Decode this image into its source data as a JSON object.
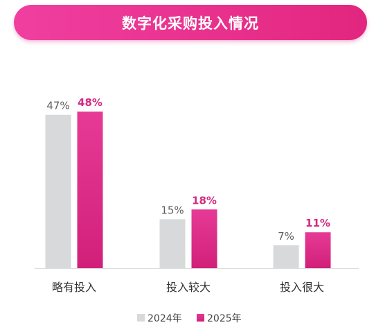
{
  "title": "数字化采购投入情况",
  "colors": {
    "series_2024": "#d8d9db",
    "series_2025_top": "#e63a96",
    "series_2025_bottom": "#d1207a",
    "value_2024_text": "#5e5e5e",
    "value_2025_text": "#d22a84",
    "category_text": "#333333",
    "axis": "#dcdcdc"
  },
  "chart_data": {
    "type": "bar",
    "title": "数字化采购投入情况",
    "categories": [
      "略有投入",
      "投入较大",
      "投入很大"
    ],
    "series": [
      {
        "name": "2024年",
        "values": [
          47,
          15,
          7
        ],
        "labels": [
          "47%",
          "15%",
          "7%"
        ]
      },
      {
        "name": "2025年",
        "values": [
          48,
          18,
          11
        ],
        "labels": [
          "48%",
          "18%",
          "11%"
        ]
      }
    ],
    "ylim": [
      0,
      48
    ],
    "unit": "%",
    "grid": false,
    "legend": "bottom-center"
  }
}
